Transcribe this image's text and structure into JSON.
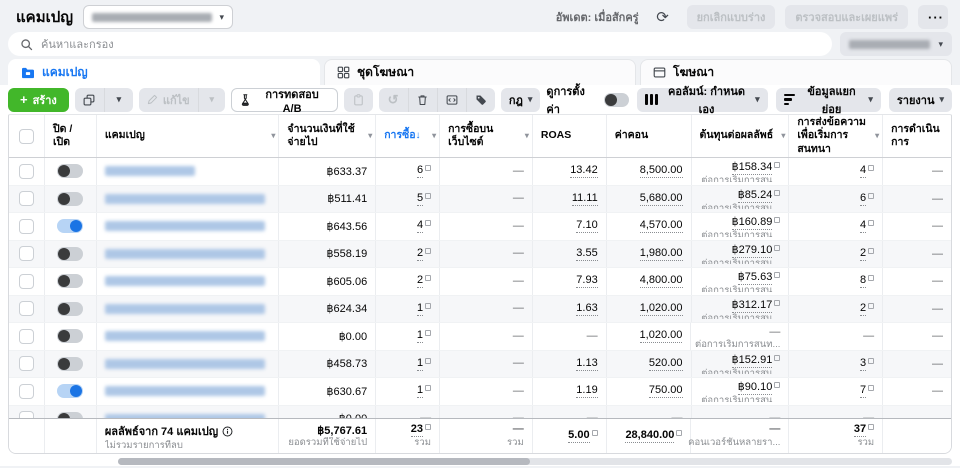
{
  "topbar": {
    "title": "แคมเปญ",
    "updated": "อัพเดต: เมื่อสักครู่",
    "discard_button": "ยกเลิกแบบร่าง",
    "review_publish_button": "ตรวจสอบและเผยแพร่",
    "more_button": "···"
  },
  "search": {
    "placeholder": "ค้นหาและกรอง"
  },
  "tabs": {
    "campaigns": "แคมเปญ",
    "adsets": "ชุดโฆษณา",
    "ads": "โฆษณา"
  },
  "toolbar": {
    "create": "สร้าง",
    "edit": "แก้ไข",
    "ab_test": "การทดสอบ A/B",
    "rules": "กฎ",
    "view_setup": "ดูการตั้งค่า",
    "columns": "คอลัมน์: กำหนดเอง",
    "breakdown": "ข้อมูลแยกย่อย",
    "report": "รายงาน"
  },
  "table": {
    "headers": {
      "onoff": "ปิด / เปิด",
      "campaign": "แคมเปญ",
      "spent": "จำนวนเงินที่ใช้จ่ายไป",
      "purchases": "การซื้อ",
      "sort_arrow": "↓",
      "web_purchases": "การซื้อบนเว็บไซต์",
      "roas": "ROAS",
      "conv": "ค่าคอน",
      "cost": "ต้นทุนต่อผลลัพธ์",
      "messaging": "การส่งข้อความเพื่อเริ่มการสนทนา",
      "action": "การดำเนินการ"
    },
    "rows": [
      {
        "toggle_on": false,
        "spent": "฿633.37",
        "purchases": "6",
        "web": "—",
        "roas": "13.42",
        "conv": "8,500.00",
        "cost": "฿158.34",
        "cost_sub": "ต่อการเริ่มการสน...",
        "messaging": "4",
        "action": "—"
      },
      {
        "toggle_on": false,
        "spent": "฿511.41",
        "purchases": "5",
        "web": "—",
        "roas": "11.11",
        "conv": "5,680.00",
        "cost": "฿85.24",
        "cost_sub": "ต่อการเริ่มการสน...",
        "messaging": "6",
        "action": "—"
      },
      {
        "toggle_on": true,
        "spent": "฿643.56",
        "purchases": "4",
        "web": "—",
        "roas": "7.10",
        "conv": "4,570.00",
        "cost": "฿160.89",
        "cost_sub": "ต่อการเริ่มการสน...",
        "messaging": "4",
        "action": "—"
      },
      {
        "toggle_on": false,
        "spent": "฿558.19",
        "purchases": "2",
        "web": "—",
        "roas": "3.55",
        "conv": "1,980.00",
        "cost": "฿279.10",
        "cost_sub": "ต่อการเริ่มการสน...",
        "messaging": "2",
        "action": "—"
      },
      {
        "toggle_on": false,
        "spent": "฿605.06",
        "purchases": "2",
        "web": "—",
        "roas": "7.93",
        "conv": "4,800.00",
        "cost": "฿75.63",
        "cost_sub": "ต่อการเริ่มการสน...",
        "messaging": "8",
        "action": "—"
      },
      {
        "toggle_on": false,
        "spent": "฿624.34",
        "purchases": "1",
        "web": "—",
        "roas": "1.63",
        "conv": "1,020.00",
        "cost": "฿312.17",
        "cost_sub": "ต่อการเริ่มการสน...",
        "messaging": "2",
        "action": "—"
      },
      {
        "toggle_on": false,
        "spent": "฿0.00",
        "purchases": "1",
        "web": "—",
        "roas": "—",
        "conv": "1,020.00",
        "cost": "—",
        "cost_sub": "ต่อการเริ่มการสนท...",
        "messaging": "—",
        "action": "—"
      },
      {
        "toggle_on": false,
        "spent": "฿458.73",
        "purchases": "1",
        "web": "—",
        "roas": "1.13",
        "conv": "520.00",
        "cost": "฿152.91",
        "cost_sub": "ต่อการเริ่มการสน...",
        "messaging": "3",
        "action": "—"
      },
      {
        "toggle_on": true,
        "spent": "฿630.67",
        "purchases": "1",
        "web": "—",
        "roas": "1.19",
        "conv": "750.00",
        "cost": "฿90.10",
        "cost_sub": "ต่อการเริ่มการสน...",
        "messaging": "7",
        "action": "—"
      },
      {
        "toggle_on": false,
        "spent": "฿0.00",
        "purchases": "—",
        "web": "—",
        "roas": "—",
        "conv": "—",
        "cost": "—",
        "cost_sub": "",
        "messaging": "—",
        "action": "—"
      }
    ],
    "footer": {
      "title": "ผลลัพธ์จาก 74 แคมเปญ",
      "subtitle": "ไม่รวมรายการที่ลบ",
      "spent": "฿5,767.61",
      "spent_sub": "ยอดรวมที่ใช้จ่ายไป",
      "purchases": "23",
      "purchases_sub": "รวม",
      "web": "—",
      "web_sub": "รวม",
      "roas": "5.00",
      "conv": "28,840.00",
      "cost": "—",
      "cost_sub": "คอนเวอร์ชันหลายรา...",
      "messaging": "37",
      "messaging_sub": "รวม"
    }
  },
  "icons": {
    "search": "magnifier",
    "refresh": "circular-arrow",
    "caret": "▾",
    "sort_desc": "↓",
    "campaign_tab": "blue-folder",
    "adset_tab": "grid",
    "ads_tab": "frame",
    "create": "+",
    "duplicate": "copy",
    "edit": "pencil",
    "ab_test": "flask",
    "pin": "clipboard",
    "undo": "↺",
    "delete": "trash",
    "inspect": "chart-box",
    "tag": "tag",
    "columns": "vertical-bars",
    "breakdown": "stacked-bars",
    "info": "ⓘ",
    "attribution": "small-square"
  },
  "colors": {
    "accent_blue": "#1877f2",
    "green": "#42b72a",
    "page_bg": "#f0f2f5",
    "disabled_text": "#bcc0c4"
  }
}
